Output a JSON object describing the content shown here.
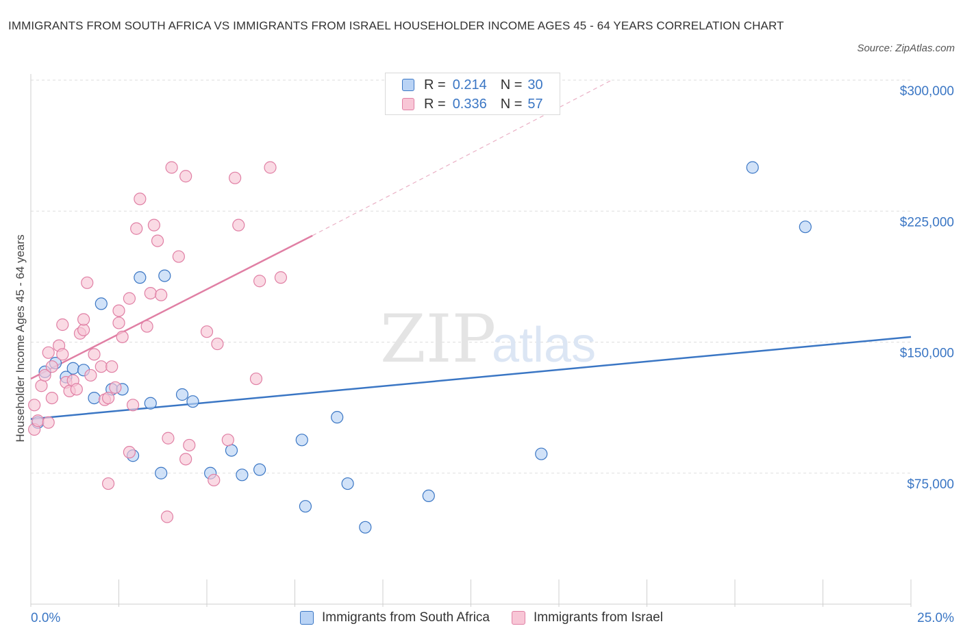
{
  "title": "IMMIGRANTS FROM SOUTH AFRICA VS IMMIGRANTS FROM ISRAEL HOUSEHOLDER INCOME AGES 45 - 64 YEARS CORRELATION CHART",
  "source": "Source: ZipAtlas.com",
  "watermark": {
    "zip": "ZIP",
    "atlas": "atlas"
  },
  "colors": {
    "blue": "#3a76c4",
    "pink": "#e07fa4",
    "blue_fill": "#b9d3f5",
    "pink_fill": "#f8c6d6"
  },
  "legend_top": [
    {
      "r_label": "R =",
      "r_value": "0.214",
      "n_label": "N =",
      "n_value": "30"
    },
    {
      "r_label": "R =",
      "r_value": "0.336",
      "n_label": "N =",
      "n_value": "57"
    }
  ],
  "chart_data": {
    "type": "scatter",
    "ylabel": "Householder Income Ages 45 - 64 years",
    "xlim": [
      0,
      25
    ],
    "ylim": [
      0,
      300000
    ],
    "x_tick_labels": [
      "0.0%",
      "25.0%"
    ],
    "y_ticks": [
      {
        "value": 75000,
        "label": "$75,000"
      },
      {
        "value": 150000,
        "label": "$150,000"
      },
      {
        "value": 225000,
        "label": "$225,000"
      },
      {
        "value": 300000,
        "label": "$300,000"
      }
    ],
    "series": [
      {
        "name": "Immigrants from South Africa",
        "color": "#3a76c4",
        "trend": {
          "x0": 0,
          "y0": 106000,
          "x1": 25,
          "y1": 153000
        },
        "points": [
          [
            0.2,
            104000
          ],
          [
            0.4,
            133000
          ],
          [
            0.7,
            138000
          ],
          [
            1.2,
            135000
          ],
          [
            1.5,
            134000
          ],
          [
            2.0,
            172000
          ],
          [
            3.1,
            187000
          ],
          [
            3.8,
            188000
          ],
          [
            1.0,
            130000
          ],
          [
            1.8,
            118000
          ],
          [
            2.3,
            123000
          ],
          [
            2.6,
            123000
          ],
          [
            3.4,
            115000
          ],
          [
            4.3,
            120000
          ],
          [
            4.6,
            116000
          ],
          [
            2.9,
            85000
          ],
          [
            3.7,
            75000
          ],
          [
            5.1,
            75000
          ],
          [
            5.7,
            88000
          ],
          [
            6.0,
            74000
          ],
          [
            6.5,
            77000
          ],
          [
            7.7,
            94000
          ],
          [
            7.8,
            56000
          ],
          [
            8.7,
            107000
          ],
          [
            9.0,
            69000
          ],
          [
            9.5,
            44000
          ],
          [
            11.3,
            62000
          ],
          [
            14.5,
            86000
          ],
          [
            20.5,
            250000
          ],
          [
            22.0,
            216000
          ]
        ]
      },
      {
        "name": "Immigrants from Israel",
        "color": "#e07fa4",
        "trend": {
          "x0": 0,
          "y0": 129000,
          "x1": 8.0,
          "y1": 211000,
          "dash_x1": 16.5,
          "dash_y1": 300000
        },
        "points": [
          [
            0.1,
            100000
          ],
          [
            0.1,
            114000
          ],
          [
            0.2,
            105000
          ],
          [
            0.3,
            125000
          ],
          [
            0.4,
            131000
          ],
          [
            0.5,
            104000
          ],
          [
            0.5,
            144000
          ],
          [
            0.6,
            136000
          ],
          [
            0.6,
            118000
          ],
          [
            0.8,
            148000
          ],
          [
            0.9,
            143000
          ],
          [
            0.9,
            160000
          ],
          [
            1.0,
            127000
          ],
          [
            1.1,
            122000
          ],
          [
            1.2,
            128000
          ],
          [
            1.3,
            123000
          ],
          [
            1.4,
            155000
          ],
          [
            1.5,
            157000
          ],
          [
            1.5,
            163000
          ],
          [
            1.6,
            184000
          ],
          [
            1.7,
            131000
          ],
          [
            1.8,
            143000
          ],
          [
            2.0,
            136000
          ],
          [
            2.1,
            117000
          ],
          [
            2.2,
            118000
          ],
          [
            2.3,
            136000
          ],
          [
            2.4,
            124000
          ],
          [
            2.5,
            161000
          ],
          [
            2.5,
            168000
          ],
          [
            2.6,
            153000
          ],
          [
            2.8,
            175000
          ],
          [
            2.9,
            114000
          ],
          [
            3.0,
            215000
          ],
          [
            3.1,
            232000
          ],
          [
            3.3,
            159000
          ],
          [
            3.4,
            178000
          ],
          [
            3.5,
            217000
          ],
          [
            3.6,
            208000
          ],
          [
            3.7,
            177000
          ],
          [
            3.9,
            95000
          ],
          [
            4.0,
            250000
          ],
          [
            4.2,
            199000
          ],
          [
            4.4,
            245000
          ],
          [
            4.4,
            83000
          ],
          [
            4.5,
            91000
          ],
          [
            2.8,
            87000
          ],
          [
            2.2,
            69000
          ],
          [
            5.0,
            156000
          ],
          [
            5.2,
            71000
          ],
          [
            5.3,
            149000
          ],
          [
            5.6,
            94000
          ],
          [
            5.8,
            244000
          ],
          [
            5.9,
            217000
          ],
          [
            6.4,
            129000
          ],
          [
            6.8,
            250000
          ],
          [
            6.5,
            185000
          ],
          [
            7.1,
            187000
          ]
        ]
      }
    ],
    "extra_low_pink": [
      [
        5.0,
        50000
      ]
    ]
  }
}
